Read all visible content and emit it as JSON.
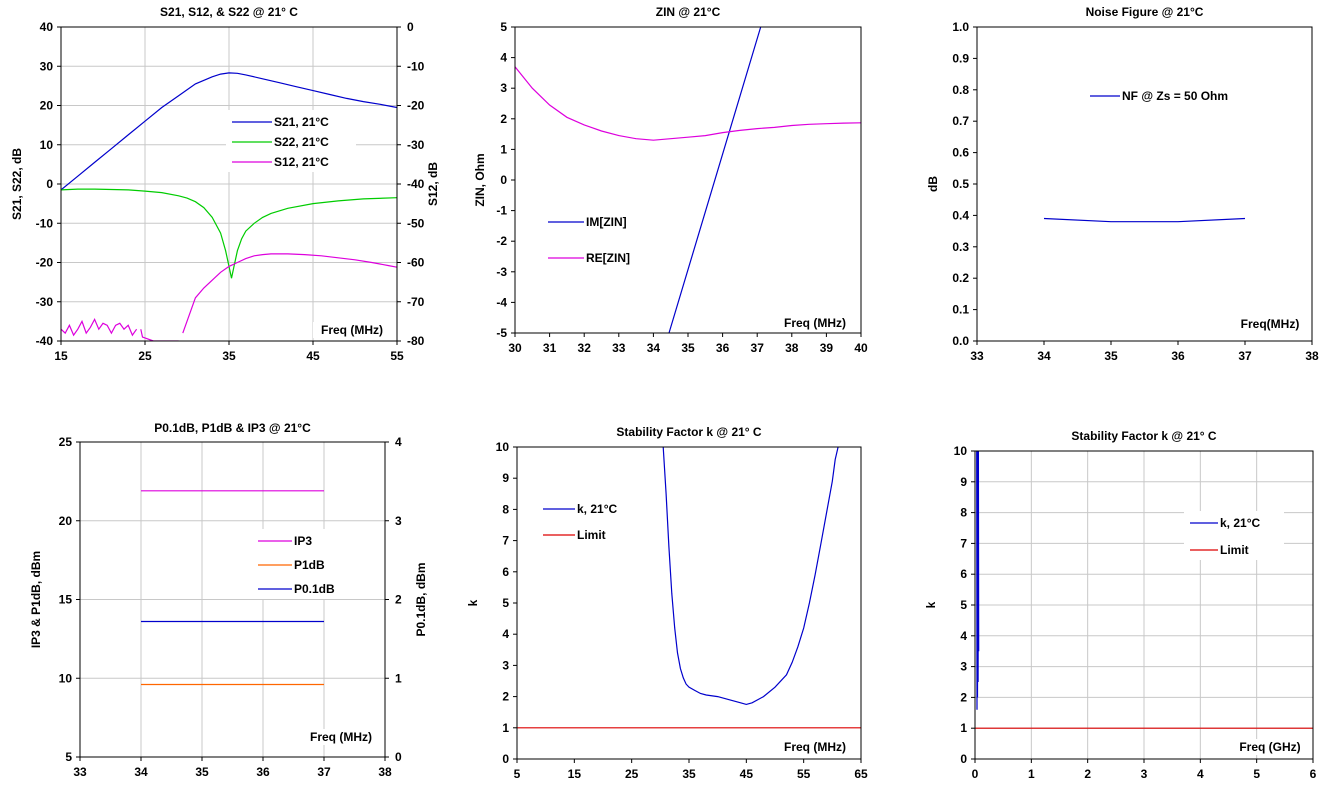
{
  "chart_data": [
    {
      "id": "s_params",
      "type": "line",
      "title": "S21, S12, & S22 @ 21° C",
      "xlabel": "Freq (MHz)",
      "ylabel": "S21, S22, dB",
      "y2label": "S12, dB",
      "xlim": [
        15,
        55
      ],
      "ylim": [
        -40,
        40
      ],
      "y2lim": [
        -80,
        0
      ],
      "xticks": [
        15,
        25,
        35,
        45,
        55
      ],
      "yticks": [
        -40,
        -30,
        -20,
        -10,
        0,
        10,
        20,
        30,
        40
      ],
      "y2ticks": [
        -80,
        -70,
        -60,
        -50,
        -40,
        -30,
        -20,
        -10,
        0
      ],
      "grid": true,
      "legend_position": "center-right",
      "series": [
        {
          "name": "S21, 21°C",
          "color": "#0000cc",
          "axis": "left",
          "x": [
            15,
            17,
            19,
            21,
            23,
            25,
            27,
            29,
            31,
            33,
            34,
            35,
            36,
            37,
            39,
            41,
            43,
            45,
            47,
            49,
            51,
            53,
            55
          ],
          "y": [
            -1.5,
            2,
            5.5,
            9,
            12.5,
            16,
            19.5,
            22.5,
            25.5,
            27.3,
            28,
            28.3,
            28.2,
            27.8,
            26.8,
            25.8,
            24.8,
            23.8,
            22.8,
            21.8,
            21,
            20.3,
            19.5
          ]
        },
        {
          "name": "S22, 21°C",
          "color": "#00cc00",
          "axis": "left",
          "x": [
            15,
            17,
            19,
            21,
            23,
            25,
            27,
            29,
            30,
            31,
            32,
            33,
            34,
            34.6,
            35,
            35.3,
            35.6,
            36,
            36.5,
            37,
            38,
            39,
            40,
            42,
            45,
            48,
            51,
            55
          ],
          "y": [
            -1.5,
            -1.3,
            -1.3,
            -1.4,
            -1.5,
            -1.8,
            -2.2,
            -3,
            -3.6,
            -4.5,
            -6,
            -8.5,
            -12.5,
            -17,
            -21,
            -24,
            -21,
            -17,
            -14,
            -12,
            -10,
            -8.5,
            -7.5,
            -6.2,
            -5,
            -4.3,
            -3.8,
            -3.5
          ]
        },
        {
          "name": "S12, 21°C",
          "color": "#dd00dd",
          "axis": "right",
          "x": [
            15,
            15.5,
            16,
            16.5,
            17,
            17.5,
            18,
            18.5,
            19,
            19.5,
            20,
            20.5,
            21,
            21.5,
            22,
            22.5,
            23,
            23.5,
            24
          ],
          "y": [
            -77,
            -78,
            -76,
            -78.5,
            -77,
            -75,
            -78,
            -76.5,
            -74.5,
            -77,
            -75.5,
            -76,
            -78,
            -76,
            -75.5,
            -77,
            -76,
            -78.5,
            -77
          ]
        },
        {
          "name": "",
          "color": "#dd00dd",
          "axis": "right",
          "x": [
            24.5,
            24.7,
            26,
            27,
            28,
            29
          ],
          "y": [
            -77,
            -79,
            -80,
            -80,
            -80,
            -80
          ]
        },
        {
          "name": "",
          "color": "#dd00dd",
          "axis": "right",
          "x": [
            29.5,
            31,
            32,
            33,
            34,
            35,
            36,
            37,
            38,
            39,
            40,
            42,
            44,
            46,
            48,
            50,
            52,
            54,
            55
          ],
          "y": [
            -78,
            -69,
            -66.5,
            -64.5,
            -62.5,
            -61,
            -60,
            -59,
            -58.3,
            -58,
            -57.8,
            -57.8,
            -58,
            -58.3,
            -58.8,
            -59.3,
            -60,
            -60.8,
            -61.2
          ]
        }
      ]
    },
    {
      "id": "zin",
      "type": "line",
      "title": "ZIN @ 21°C",
      "xlabel": "Freq (MHz)",
      "ylabel": "ZIN, Ohm",
      "xlim": [
        30,
        40
      ],
      "ylim": [
        -5,
        5
      ],
      "xticks": [
        30,
        31,
        32,
        33,
        34,
        35,
        36,
        37,
        38,
        39,
        40
      ],
      "yticks": [
        -5,
        -4,
        -3,
        -2,
        -1,
        0,
        1,
        2,
        3,
        4,
        5
      ],
      "grid": false,
      "legend_position": "lower-left",
      "series": [
        {
          "name": "IM[ZIN]",
          "color": "#0000cc",
          "x": [
            34.45,
            37.1
          ],
          "y": [
            -5,
            5
          ]
        },
        {
          "name": "RE[ZIN]",
          "color": "#dd00dd",
          "x": [
            30,
            30.5,
            31,
            31.5,
            32,
            32.5,
            33,
            33.5,
            34,
            34.5,
            35,
            35.5,
            36,
            36.5,
            37,
            37.5,
            38,
            38.5,
            39,
            39.5,
            40
          ],
          "y": [
            3.7,
            3.0,
            2.45,
            2.05,
            1.8,
            1.6,
            1.45,
            1.35,
            1.3,
            1.35,
            1.4,
            1.45,
            1.55,
            1.62,
            1.68,
            1.72,
            1.78,
            1.82,
            1.84,
            1.86,
            1.87
          ]
        }
      ]
    },
    {
      "id": "nf",
      "type": "line",
      "title": "Noise Figure @ 21°C",
      "xlabel": "Freq(MHz)",
      "ylabel": "dB",
      "xlim": [
        33,
        38
      ],
      "ylim": [
        0,
        1
      ],
      "xticks": [
        33,
        34,
        35,
        36,
        37,
        38
      ],
      "yticks": [
        0.0,
        0.1,
        0.2,
        0.3,
        0.4,
        0.5,
        0.6,
        0.7,
        0.8,
        0.9,
        1.0
      ],
      "ytick_labels": [
        "0.0",
        "0.1",
        "0.2",
        "0.3",
        "0.4",
        "0.5",
        "0.6",
        "0.7",
        "0.8",
        "0.9",
        "1.0"
      ],
      "grid": false,
      "legend_position": "top-center",
      "series": [
        {
          "name": "NF @ Zs = 50 Ohm",
          "color": "#0000cc",
          "x": [
            34,
            35,
            36,
            37
          ],
          "y": [
            0.39,
            0.38,
            0.38,
            0.39
          ]
        }
      ]
    },
    {
      "id": "power",
      "type": "line",
      "title": "P0.1dB, P1dB & IP3 @ 21°C",
      "xlabel": "Freq (MHz)",
      "ylabel": "IP3 & P1dB, dBm",
      "y2label": "P0.1dB, dBm",
      "xlim": [
        33,
        38
      ],
      "ylim": [
        5,
        25
      ],
      "y2lim": [
        0,
        4
      ],
      "xticks": [
        33,
        34,
        35,
        36,
        37,
        38
      ],
      "yticks": [
        5,
        10,
        15,
        20,
        25
      ],
      "y2ticks": [
        0,
        1,
        2,
        3,
        4
      ],
      "grid": true,
      "legend_position": "center-right",
      "series": [
        {
          "name": "IP3",
          "color": "#dd00dd",
          "axis": "left",
          "x": [
            34,
            37
          ],
          "y": [
            21.9,
            21.9
          ]
        },
        {
          "name": "P1dB",
          "color": "#ff6600",
          "axis": "left",
          "x": [
            34,
            37
          ],
          "y": [
            9.6,
            9.6
          ]
        },
        {
          "name": "P0.1dB",
          "color": "#0000cc",
          "axis": "left",
          "x": [
            34,
            37
          ],
          "y": [
            13.6,
            13.6
          ]
        }
      ]
    },
    {
      "id": "k_mhz",
      "type": "line",
      "title": "Stability Factor k @ 21° C",
      "xlabel": "Freq (MHz)",
      "ylabel": "k",
      "xlim": [
        5,
        65
      ],
      "ylim": [
        0,
        10
      ],
      "xticks": [
        5,
        15,
        25,
        35,
        45,
        55,
        65
      ],
      "yticks": [
        0,
        1,
        2,
        3,
        4,
        5,
        6,
        7,
        8,
        9,
        10
      ],
      "grid": false,
      "legend_position": "top-left",
      "series": [
        {
          "name": "k, 21°C",
          "color": "#0000cc",
          "x": [
            30.5,
            31,
            31.5,
            32,
            32.5,
            33,
            33.5,
            34,
            34.5,
            35,
            36,
            37,
            38,
            40,
            42,
            44,
            45,
            46,
            48,
            50,
            52,
            53,
            54,
            55,
            56,
            57,
            58,
            59,
            60,
            60.5,
            61
          ],
          "y": [
            10,
            8.5,
            6.8,
            5.3,
            4.2,
            3.4,
            2.9,
            2.6,
            2.4,
            2.3,
            2.2,
            2.1,
            2.05,
            2.0,
            1.9,
            1.8,
            1.75,
            1.8,
            2.0,
            2.3,
            2.7,
            3.1,
            3.6,
            4.2,
            5.0,
            5.9,
            6.9,
            7.9,
            8.9,
            9.6,
            10
          ]
        },
        {
          "name": "Limit",
          "color": "#dd0000",
          "x": [
            5,
            65
          ],
          "y": [
            1,
            1
          ]
        }
      ]
    },
    {
      "id": "k_ghz",
      "type": "line",
      "title": "Stability Factor k @ 21° C",
      "xlabel": "Freq (GHz)",
      "ylabel": "k",
      "xlim": [
        0,
        6
      ],
      "ylim": [
        0,
        10
      ],
      "xticks": [
        0,
        1,
        2,
        3,
        4,
        5,
        6
      ],
      "yticks": [
        0,
        1,
        2,
        3,
        4,
        5,
        6,
        7,
        8,
        9,
        10
      ],
      "grid": true,
      "legend_position": "center-right",
      "series": [
        {
          "name": "k, 21°C",
          "color": "#0000cc",
          "x": [
            0.03,
            0.035,
            0.04,
            0.045,
            0.05,
            0.055,
            0.06,
            0.065
          ],
          "y": [
            10,
            1.6,
            10,
            2.0,
            10,
            2.5,
            10,
            3.5
          ]
        },
        {
          "name": "Limit",
          "color": "#dd0000",
          "x": [
            0,
            6
          ],
          "y": [
            1,
            1
          ]
        }
      ]
    }
  ]
}
